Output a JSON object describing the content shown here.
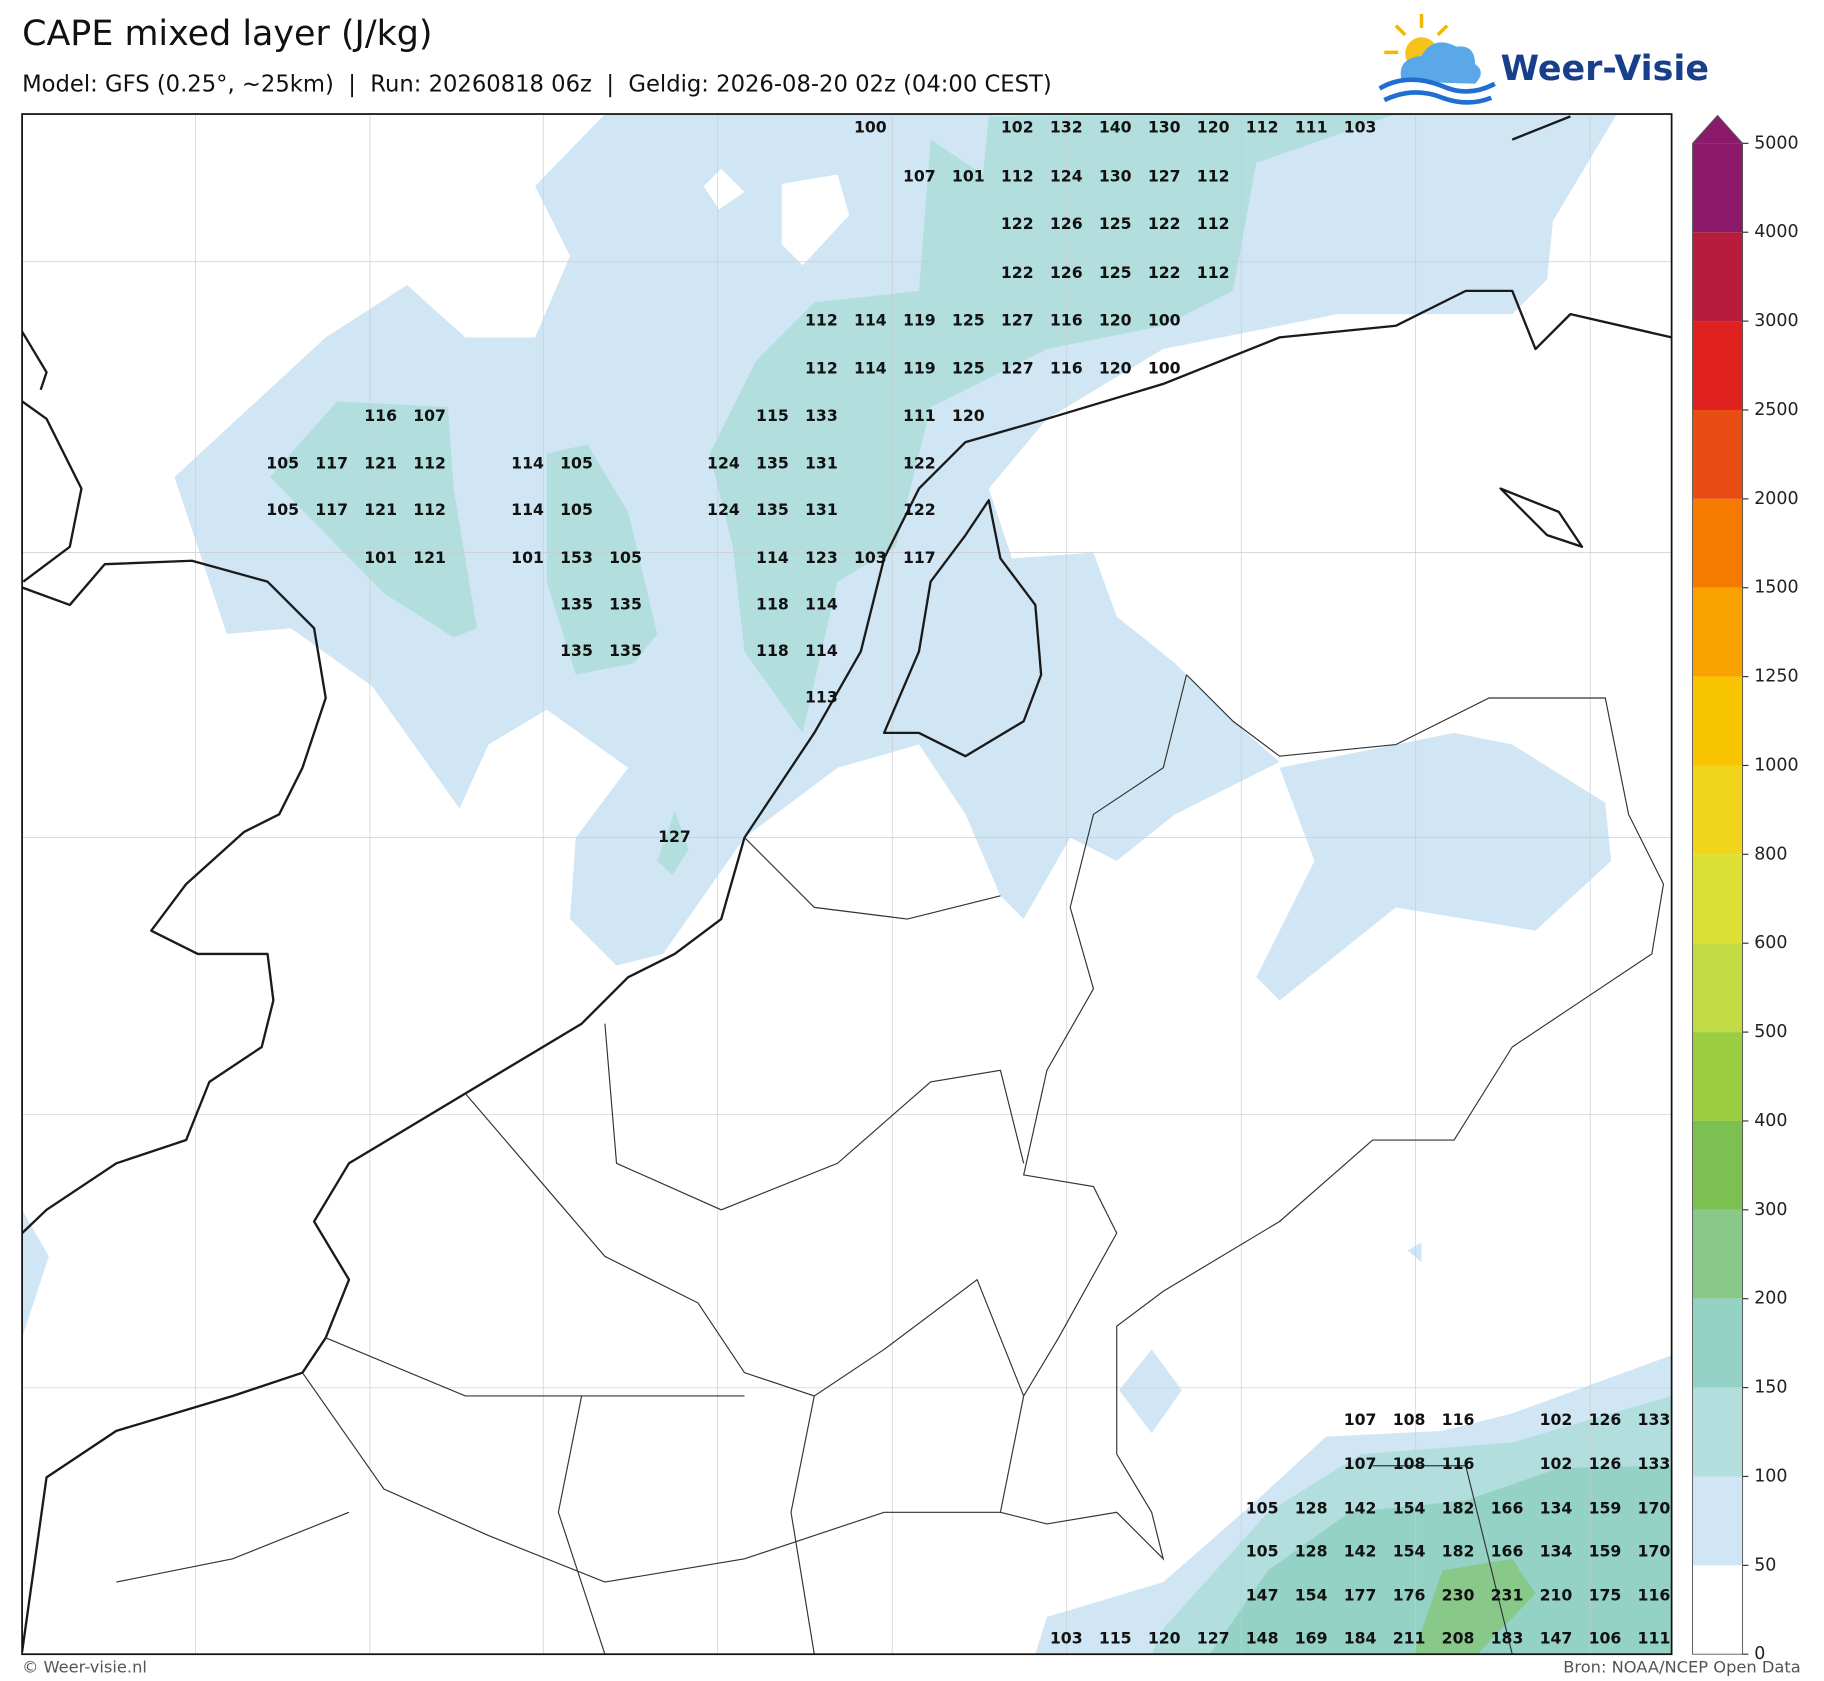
{
  "header": {
    "title": "CAPE mixed layer (J/kg)",
    "subtitle": "Model: GFS (0.25°, ~25km)  |  Run: 20260818 06z  |  Geldig: 2026-08-20 02z (04:00 CEST)",
    "logo": "Weer-Visie"
  },
  "map": {
    "labels": [
      [
        100,
        102,
        132,
        140,
        130,
        120,
        112,
        111,
        103
      ],
      [
        107,
        101,
        112,
        124,
        130,
        127,
        112
      ],
      [
        122,
        126,
        125,
        122,
        112
      ],
      [
        122,
        126,
        125,
        122,
        112
      ],
      [
        112,
        114,
        119,
        125,
        127,
        116,
        120,
        100
      ],
      [
        112,
        114,
        119,
        125,
        127,
        116,
        120,
        100
      ],
      [
        116,
        107,
        115,
        133,
        111,
        120
      ],
      [
        105,
        117,
        121,
        112,
        114,
        105,
        124,
        135,
        131,
        122
      ],
      [
        105,
        117,
        121,
        112,
        114,
        105,
        124,
        135,
        131,
        122
      ],
      [
        101,
        121,
        101,
        153,
        105,
        114,
        123,
        103,
        117
      ],
      [
        135,
        135,
        118,
        114
      ],
      [
        135,
        135,
        118,
        114
      ],
      [
        113
      ],
      [
        127
      ],
      [
        107,
        108,
        116,
        102,
        126,
        133
      ],
      [
        107,
        108,
        116,
        102,
        126,
        133
      ],
      [
        105,
        128,
        142,
        154,
        182,
        166,
        134,
        159,
        170
      ],
      [
        105,
        128,
        142,
        154,
        182,
        166,
        134,
        159,
        170
      ],
      [
        147,
        154,
        177,
        176,
        230,
        231,
        210,
        175,
        116
      ],
      [
        103,
        115,
        120,
        127,
        148,
        169,
        184,
        211,
        208,
        183,
        147,
        106,
        111
      ]
    ]
  },
  "colorbar": {
    "levels": [
      0,
      50,
      100,
      150,
      200,
      300,
      400,
      500,
      600,
      800,
      1000,
      1250,
      1500,
      2000,
      2500,
      3000,
      4000,
      5000
    ],
    "colors": [
      "#ffffff",
      "#d0e6f5",
      "#b2dede",
      "#94d2c6",
      "#88c98a",
      "#7cc052",
      "#9acd42",
      "#c2da44",
      "#dde136",
      "#f1d51a",
      "#f9c500",
      "#f9a200",
      "#f47a00",
      "#e94c12",
      "#df2120",
      "#b71c3d",
      "#8c1a6a"
    ]
  },
  "footer": {
    "left": "© Weer-visie.nl",
    "right": "Bron: NOAA/NCEP Open Data"
  }
}
